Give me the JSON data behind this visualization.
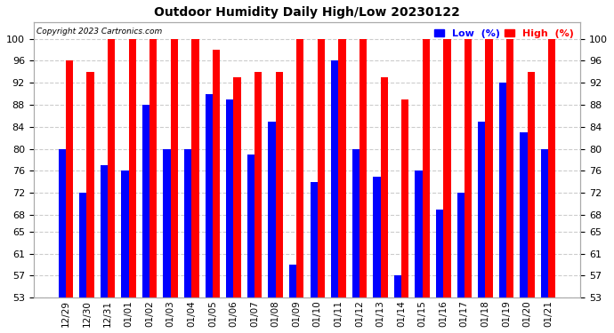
{
  "title": "Outdoor Humidity Daily High/Low 20230122",
  "copyright": "Copyright 2023 Cartronics.com",
  "labels": [
    "12/29",
    "12/30",
    "12/31",
    "01/01",
    "01/02",
    "01/03",
    "01/04",
    "01/05",
    "01/06",
    "01/07",
    "01/08",
    "01/09",
    "01/10",
    "01/11",
    "01/12",
    "01/13",
    "01/14",
    "01/15",
    "01/16",
    "01/17",
    "01/18",
    "01/19",
    "01/20",
    "01/21"
  ],
  "high": [
    96,
    94,
    100,
    100,
    100,
    100,
    100,
    98,
    93,
    94,
    94,
    100,
    100,
    100,
    100,
    93,
    89,
    100,
    100,
    100,
    100,
    100,
    94,
    100
  ],
  "low": [
    80,
    72,
    77,
    76,
    88,
    80,
    80,
    90,
    89,
    79,
    85,
    59,
    74,
    96,
    80,
    75,
    57,
    76,
    69,
    72,
    85,
    92,
    83,
    80
  ],
  "high_color": "#ff0000",
  "low_color": "#0000ff",
  "bg_color": "#ffffff",
  "grid_color": "#cccccc",
  "ylim_min": 53,
  "ylim_max": 103,
  "yticks": [
    53,
    57,
    61,
    65,
    68,
    72,
    76,
    80,
    84,
    88,
    92,
    96,
    100
  ],
  "bar_width": 0.35,
  "figsize": [
    6.9,
    3.75
  ],
  "dpi": 100
}
